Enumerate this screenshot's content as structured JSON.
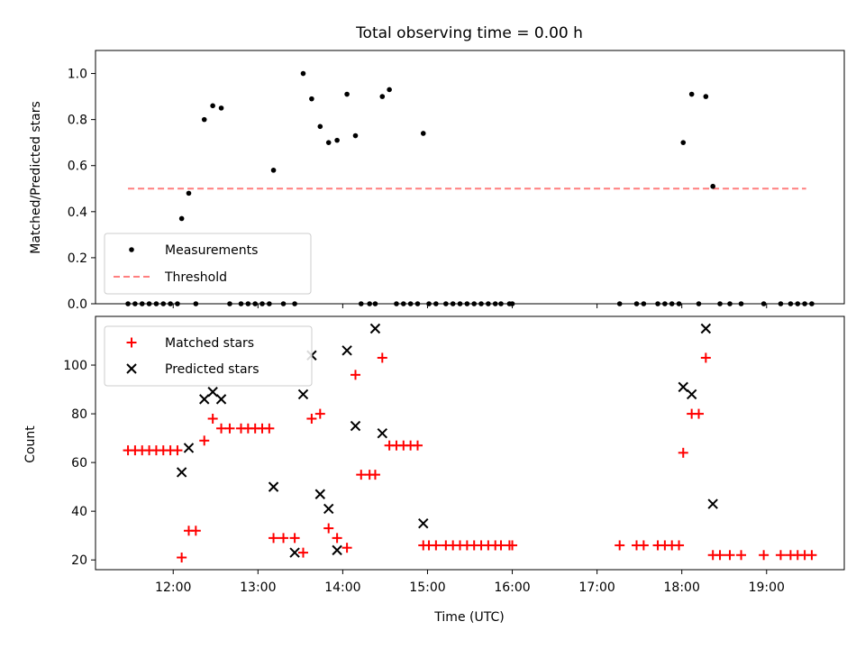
{
  "chart_data": [
    {
      "type": "scatter",
      "title": "Total observing time = 0.00 h",
      "xlabel": "",
      "ylabel": "Matched/Predicted stars",
      "ylim": [
        0,
        1.1
      ],
      "yticks": [
        0.0,
        0.2,
        0.4,
        0.6,
        0.8,
        1.0
      ],
      "ytick_labels": [
        "0.0",
        "0.2",
        "0.4",
        "0.6",
        "0.8",
        "1.0"
      ],
      "legend_position": "bottom-left",
      "series": [
        {
          "name": "Measurements",
          "marker": "dot",
          "color": "#000000",
          "x": [
            "11:28",
            "11:33",
            "11:38",
            "11:43",
            "11:48",
            "11:53",
            "11:58",
            "12:03",
            "12:06",
            "12:11",
            "12:16",
            "12:22",
            "12:28",
            "12:34",
            "12:40",
            "12:48",
            "12:53",
            "12:58",
            "13:03",
            "13:08",
            "13:11",
            "13:18",
            "13:26",
            "13:32",
            "13:38",
            "13:44",
            "13:50",
            "13:56",
            "14:03",
            "14:09",
            "14:13",
            "14:19",
            "14:23",
            "14:28",
            "14:33",
            "14:38",
            "14:43",
            "14:48",
            "14:53",
            "14:57",
            "15:01",
            "15:06",
            "15:13",
            "15:18",
            "15:23",
            "15:28",
            "15:33",
            "15:38",
            "15:43",
            "15:48",
            "15:52",
            "15:58",
            "16:00",
            "17:16",
            "17:28",
            "17:33",
            "17:43",
            "17:48",
            "17:53",
            "17:58",
            "18:01",
            "18:07",
            "18:12",
            "18:17",
            "18:22",
            "18:27",
            "18:34",
            "18:42",
            "18:58",
            "19:10",
            "19:17",
            "19:22",
            "19:27",
            "19:32"
          ],
          "y": [
            0,
            0,
            0,
            0,
            0,
            0,
            0,
            0,
            0.37,
            0.48,
            0,
            0.8,
            0.86,
            0.85,
            0,
            0,
            0,
            0,
            0,
            0,
            0.58,
            0,
            0,
            1.0,
            0.89,
            0.77,
            0.7,
            0.71,
            0.91,
            0.73,
            0,
            0,
            0,
            0.9,
            0.93,
            0,
            0,
            0,
            0,
            0.74,
            0,
            0,
            0,
            0,
            0,
            0,
            0,
            0,
            0,
            0,
            0,
            0,
            0,
            0,
            0,
            0,
            0,
            0,
            0,
            0,
            0.7,
            0.91,
            0,
            0.9,
            0.51,
            0,
            0,
            0,
            0,
            0,
            0,
            0,
            0,
            0
          ]
        },
        {
          "name": "Threshold",
          "marker": "dashed-line",
          "color": "#ff7f7f",
          "x": [
            "11:28",
            "19:28"
          ],
          "y": [
            0.5,
            0.5
          ]
        }
      ]
    },
    {
      "type": "scatter",
      "title": "",
      "xlabel": "Time (UTC)",
      "ylabel": "Count",
      "ylim": [
        16,
        120
      ],
      "yticks": [
        20,
        40,
        60,
        80,
        100
      ],
      "ytick_labels": [
        "20",
        "40",
        "60",
        "80",
        "100"
      ],
      "xlim": [
        "11:05",
        "19:55"
      ],
      "xticks": [
        "12:00",
        "13:00",
        "14:00",
        "15:00",
        "16:00",
        "17:00",
        "18:00",
        "19:00"
      ],
      "xtick_labels": [
        "12:00",
        "13:00",
        "14:00",
        "15:00",
        "16:00",
        "17:00",
        "18:00",
        "19:00"
      ],
      "legend_position": "top-left",
      "series": [
        {
          "name": "Matched stars",
          "marker": "plus",
          "color": "#ff0000",
          "x": [
            "11:28",
            "11:33",
            "11:38",
            "11:43",
            "11:48",
            "11:53",
            "11:58",
            "12:03",
            "12:06",
            "12:11",
            "12:16",
            "12:22",
            "12:28",
            "12:34",
            "12:40",
            "12:48",
            "12:53",
            "12:58",
            "13:03",
            "13:08",
            "13:11",
            "13:18",
            "13:26",
            "13:32",
            "13:38",
            "13:44",
            "13:50",
            "13:56",
            "14:03",
            "14:09",
            "14:13",
            "14:19",
            "14:23",
            "14:28",
            "14:33",
            "14:38",
            "14:43",
            "14:48",
            "14:53",
            "14:57",
            "15:01",
            "15:06",
            "15:13",
            "15:18",
            "15:23",
            "15:28",
            "15:33",
            "15:38",
            "15:43",
            "15:48",
            "15:52",
            "15:58",
            "16:00",
            "17:16",
            "17:28",
            "17:33",
            "17:43",
            "17:48",
            "17:53",
            "17:58",
            "18:01",
            "18:07",
            "18:12",
            "18:17",
            "18:22",
            "18:27",
            "18:34",
            "18:42",
            "18:58",
            "19:10",
            "19:17",
            "19:22",
            "19:27",
            "19:32"
          ],
          "y": [
            65,
            65,
            65,
            65,
            65,
            65,
            65,
            65,
            21,
            32,
            32,
            69,
            78,
            74,
            74,
            74,
            74,
            74,
            74,
            74,
            29,
            29,
            29,
            23,
            78,
            80,
            33,
            29,
            25,
            96,
            55,
            55,
            55,
            103,
            67,
            67,
            67,
            67,
            67,
            26,
            26,
            26,
            26,
            26,
            26,
            26,
            26,
            26,
            26,
            26,
            26,
            26,
            26,
            26,
            26,
            26,
            26,
            26,
            26,
            26,
            64,
            80,
            80,
            103,
            22,
            22,
            22,
            22,
            22,
            22,
            22,
            22,
            22,
            22
          ]
        },
        {
          "name": "Predicted stars",
          "marker": "x",
          "color": "#000000",
          "x": [
            "12:06",
            "12:11",
            "12:22",
            "12:28",
            "12:34",
            "13:11",
            "13:26",
            "13:32",
            "13:38",
            "13:44",
            "13:50",
            "13:56",
            "14:03",
            "14:09",
            "14:23",
            "14:28",
            "14:57",
            "18:01",
            "18:07",
            "18:17",
            "18:22"
          ],
          "y": [
            56,
            66,
            86,
            89,
            86,
            50,
            23,
            88,
            104,
            47,
            41,
            24,
            106,
            75,
            115,
            72,
            35,
            91,
            88,
            115,
            43
          ]
        }
      ]
    }
  ]
}
